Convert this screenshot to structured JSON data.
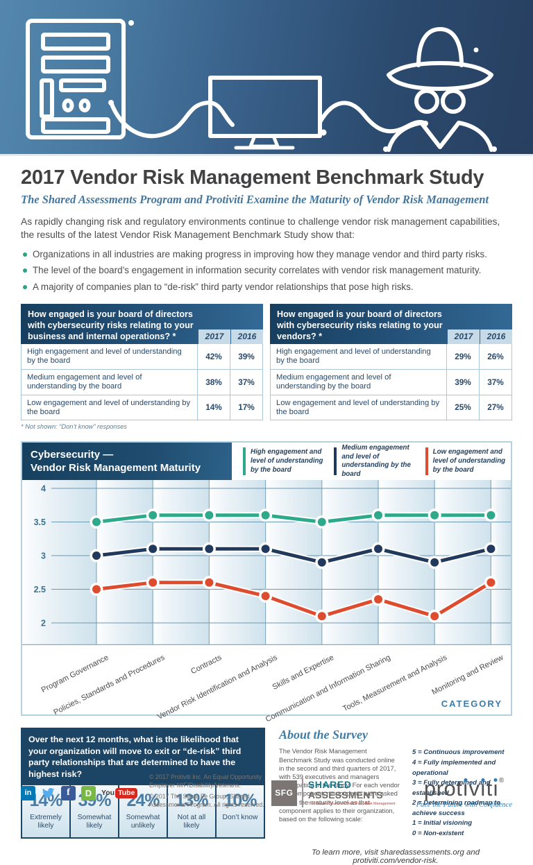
{
  "header": {
    "title": "2017 Vendor Risk Management Benchmark Study",
    "subtitle": "The Shared Assessments Program and Protiviti Examine the Maturity of Vendor Risk Management",
    "intro": "As rapidly changing risk and regulatory environments continue to challenge vendor risk management capabilities, the results of the latest Vendor Risk Management Benchmark Study show that:",
    "bullets": [
      "Organizations in all industries are making progress in improving how they manage vendor and third party risks.",
      "The level of the board’s engagement in information security correlates with vendor risk management maturity.",
      "A majority of companies plan to “de-risk” third party vendor relationships that pose high risks."
    ]
  },
  "tables": [
    {
      "question": "How engaged is your board of directors with cybersecurity risks relating to your business and internal operations? *",
      "columns": [
        "2017",
        "2016"
      ],
      "rows": [
        {
          "label": "High engagement and level of understanding by the board",
          "y2017": "42%",
          "y2016": "39%"
        },
        {
          "label": "Medium engagement and level of understanding by the board",
          "y2017": "38%",
          "y2016": "37%"
        },
        {
          "label": "Low engagement and level of understanding by the board",
          "y2017": "14%",
          "y2016": "17%"
        }
      ],
      "footnote": "* Not shown: “Don’t know” responses"
    },
    {
      "question": "How engaged is your board of directors with cybersecurity risks relating to your vendors? *",
      "columns": [
        "2017",
        "2016"
      ],
      "rows": [
        {
          "label": "High engagement and level of understanding by the board",
          "y2017": "29%",
          "y2016": "26%"
        },
        {
          "label": "Medium engagement and level of understanding by the board",
          "y2017": "39%",
          "y2016": "37%"
        },
        {
          "label": "Low engagement and level of understanding by the board",
          "y2017": "25%",
          "y2016": "27%"
        }
      ]
    }
  ],
  "chart": {
    "title_line1": "Cybersecurity —",
    "title_line2": "Vendor Risk Management Maturity",
    "legend": [
      {
        "label": "High engagement and level of understanding by the board",
        "color": "#2fa98b"
      },
      {
        "label": "Medium engagement and level of understanding by the board",
        "color": "#21395c"
      },
      {
        "label": "Low engagement and level of understanding by the board",
        "color": "#de4c2f"
      }
    ],
    "category_label": "CATEGORY"
  },
  "chart_data": {
    "type": "line",
    "title": "Cybersecurity — Vendor Risk Management Maturity",
    "categories": [
      "Program Governance",
      "Policies, Standards and Procedures",
      "Contracts",
      "Vendor Risk Identification and Analysis",
      "Skills and Expertise",
      "Communication and Information Sharing",
      "Tools, Measurement and Analysis",
      "Monitoring and Review"
    ],
    "series": [
      {
        "name": "High engagement and level of understanding by the board",
        "color": "#2fa98b",
        "values": [
          3.5,
          3.6,
          3.6,
          3.6,
          3.5,
          3.6,
          3.6,
          3.6
        ]
      },
      {
        "name": "Medium engagement and level of understanding by the board",
        "color": "#21395c",
        "values": [
          3.0,
          3.1,
          3.1,
          3.1,
          2.9,
          3.1,
          2.9,
          3.1
        ]
      },
      {
        "name": "Low engagement and level of understanding by the board",
        "color": "#de4c2f",
        "values": [
          2.5,
          2.6,
          2.6,
          2.4,
          2.1,
          2.35,
          2.1,
          2.6
        ]
      }
    ],
    "xlabel": "CATEGORY",
    "ylabel": "",
    "ylim": [
      2,
      4
    ],
    "yticks": [
      4,
      3.5,
      3,
      2.5,
      2
    ],
    "grid": true,
    "legend_position": "top"
  },
  "derisk": {
    "question": "Over the next 12 months, what is the likelihood that your organization will move to exit or “de-risk” third party relationships that are determined to have the highest risk?",
    "cells": [
      {
        "value": "14%",
        "label": "Extremely likely"
      },
      {
        "value": "39%",
        "label": "Somewhat likely"
      },
      {
        "value": "24%",
        "label": "Somewhat unlikely"
      },
      {
        "value": "13%",
        "label": "Not at all likely"
      },
      {
        "value": "10%",
        "label": "Don’t know"
      }
    ]
  },
  "about": {
    "heading": "About the Survey",
    "body": "The Vendor Risk Management Benchmark Study was conducted online in the second and third quarters of 2017, with 539 executives and managers participating in the study. For each vendor risk component, respondents were asked to rate the maturity level as that component applies to their organization, based on the following scale:",
    "scale": [
      "5 = Continuous improvement",
      "4 = Fully implemented and operational",
      "3 = Fully determined and established",
      "2 = Determining roadmap to achieve success",
      "1 = Initial visioning",
      "0 = Non-existent"
    ],
    "learn_more": "To learn more, visit sharedassessments.org and protiviti.com/vendor-risk."
  },
  "footer": {
    "social": {
      "linkedin_label": "in",
      "facebook_label": "f",
      "glassdoor_label": "D",
      "youtube_label1": "You",
      "youtube_label2": "Tube"
    },
    "copyright1": "© 2017 Protiviti Inc. An Equal Opportunity Employer M/F/Disability/Veterans.",
    "copyright2": "© 2017 The Santa Fe Group, Shared Assessments Program. All rights reserved.",
    "sfg": {
      "block": "SFG",
      "line1": "SHARED",
      "line2": "ASSESSMENTS",
      "tagline": "The Trusted Source in Third Party Risk Management"
    },
    "protiviti": {
      "name": "protiviti",
      "reg": "®",
      "tagline": "Face the Future with Confidence"
    }
  },
  "colors": {
    "accent_teal": "#2aa484",
    "navy": "#1c4464",
    "steel_blue": "#4a7da5",
    "high_series": "#2fa98b",
    "medium_series": "#21395c",
    "low_series": "#de4c2f"
  }
}
